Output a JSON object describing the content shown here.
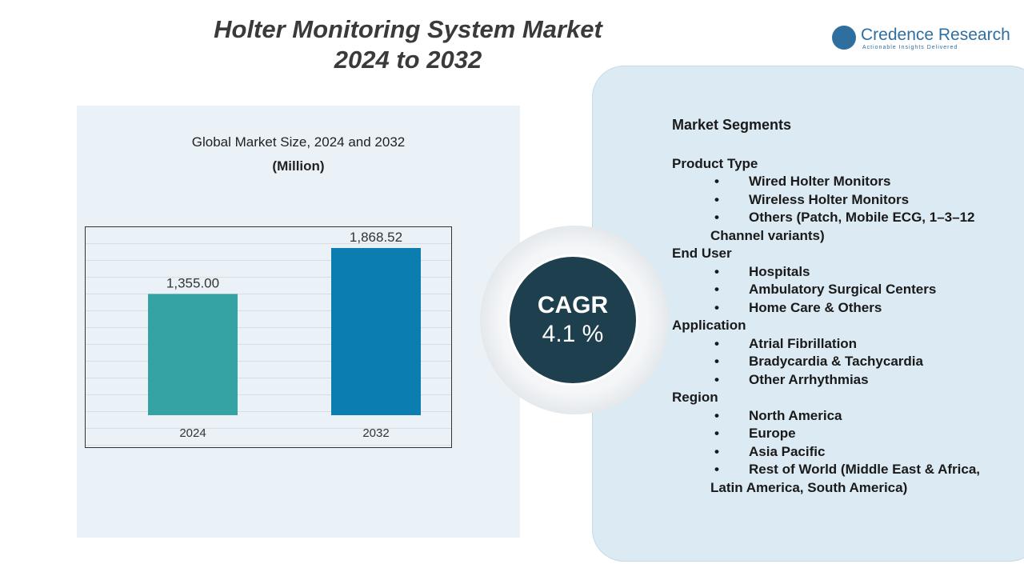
{
  "header": {
    "title": [
      "Holter Monitoring System Market",
      "2024 to 2032"
    ]
  },
  "brand": {
    "name": "Credence Research",
    "tagline": "Actionable Insights Delivered"
  },
  "chart_data": {
    "type": "bar",
    "title": "Global Market Size, 2024 and 2032",
    "subtitle": "(Million)",
    "categories": [
      "2024",
      "2032"
    ],
    "values": [
      1355.0,
      1868.52
    ],
    "value_labels": [
      "1,355.00",
      "1,868.52"
    ],
    "colors": [
      "#35a3a3",
      "#0b7db0"
    ]
  },
  "cagr": {
    "label": "CAGR",
    "value": "4.1 %"
  },
  "segments": {
    "title": "Market Segments",
    "groups": [
      {
        "name": "Product Type",
        "items": [
          "Wired Holter Monitors",
          "Wireless Holter Monitors",
          "Others (Patch, Mobile ECG, 1–3–12 Channel variants)"
        ]
      },
      {
        "name": "End User",
        "items": [
          "Hospitals",
          "Ambulatory Surgical Centers",
          "Home Care & Others"
        ]
      },
      {
        "name": "Application",
        "items": [
          "Atrial Fibrillation",
          "Bradycardia & Tachycardia",
          "Other Arrhythmias"
        ]
      },
      {
        "name": "Region",
        "items": [
          "North America",
          "Europe",
          "Asia Pacific",
          "Rest of World (Middle East & Africa, Latin America, South America)"
        ]
      }
    ]
  }
}
